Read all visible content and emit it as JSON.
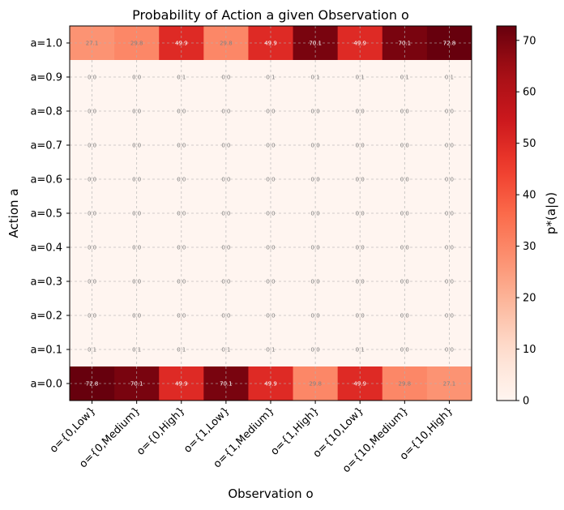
{
  "chart_data": {
    "type": "heatmap",
    "title": "Probability of Action a given Observation o",
    "xlabel": "Observation o",
    "ylabel": "Action a",
    "colorbar_label": "p*(a|o)",
    "colorbar_ticks": [
      0,
      10,
      20,
      30,
      40,
      50,
      60,
      70
    ],
    "vmin": 0,
    "vmax": 72.8,
    "colormap": "Reds",
    "grid": true,
    "x_categories": [
      "o={0,Low}",
      "o={0,Medium}",
      "o={0,High}",
      "o={1,Low}",
      "o={1,Medium}",
      "o={1,High}",
      "o={10,Low}",
      "o={10,Medium}",
      "o={10,High}"
    ],
    "y_categories": [
      "a=1.0",
      "a=0.9",
      "a=0.8",
      "a=0.7",
      "a=0.6",
      "a=0.5",
      "a=0.4",
      "a=0.3",
      "a=0.2",
      "a=0.1",
      "a=0.0"
    ],
    "values": [
      [
        27.1,
        29.8,
        49.9,
        29.8,
        49.9,
        70.1,
        49.9,
        70.1,
        72.8
      ],
      [
        0.0,
        0.0,
        0.1,
        0.0,
        0.1,
        0.1,
        0.1,
        0.1,
        0.1
      ],
      [
        0.0,
        0.0,
        0.0,
        0.0,
        0.0,
        0.0,
        0.0,
        0.0,
        0.0
      ],
      [
        0.0,
        0.0,
        0.0,
        0.0,
        0.0,
        0.0,
        0.0,
        0.0,
        0.0
      ],
      [
        0.0,
        0.0,
        0.0,
        0.0,
        0.0,
        0.0,
        0.0,
        0.0,
        0.0
      ],
      [
        0.0,
        0.0,
        0.0,
        0.0,
        0.0,
        0.0,
        0.0,
        0.0,
        0.0
      ],
      [
        0.0,
        0.0,
        0.0,
        0.0,
        0.0,
        0.0,
        0.0,
        0.0,
        0.0
      ],
      [
        0.0,
        0.0,
        0.0,
        0.0,
        0.0,
        0.0,
        0.0,
        0.0,
        0.0
      ],
      [
        0.0,
        0.0,
        0.0,
        0.0,
        0.0,
        0.0,
        0.0,
        0.0,
        0.0
      ],
      [
        0.1,
        0.1,
        0.1,
        0.1,
        0.1,
        0.0,
        0.1,
        0.0,
        0.0
      ],
      [
        72.8,
        70.1,
        49.9,
        70.1,
        49.9,
        29.8,
        49.9,
        29.8,
        27.1
      ]
    ]
  }
}
